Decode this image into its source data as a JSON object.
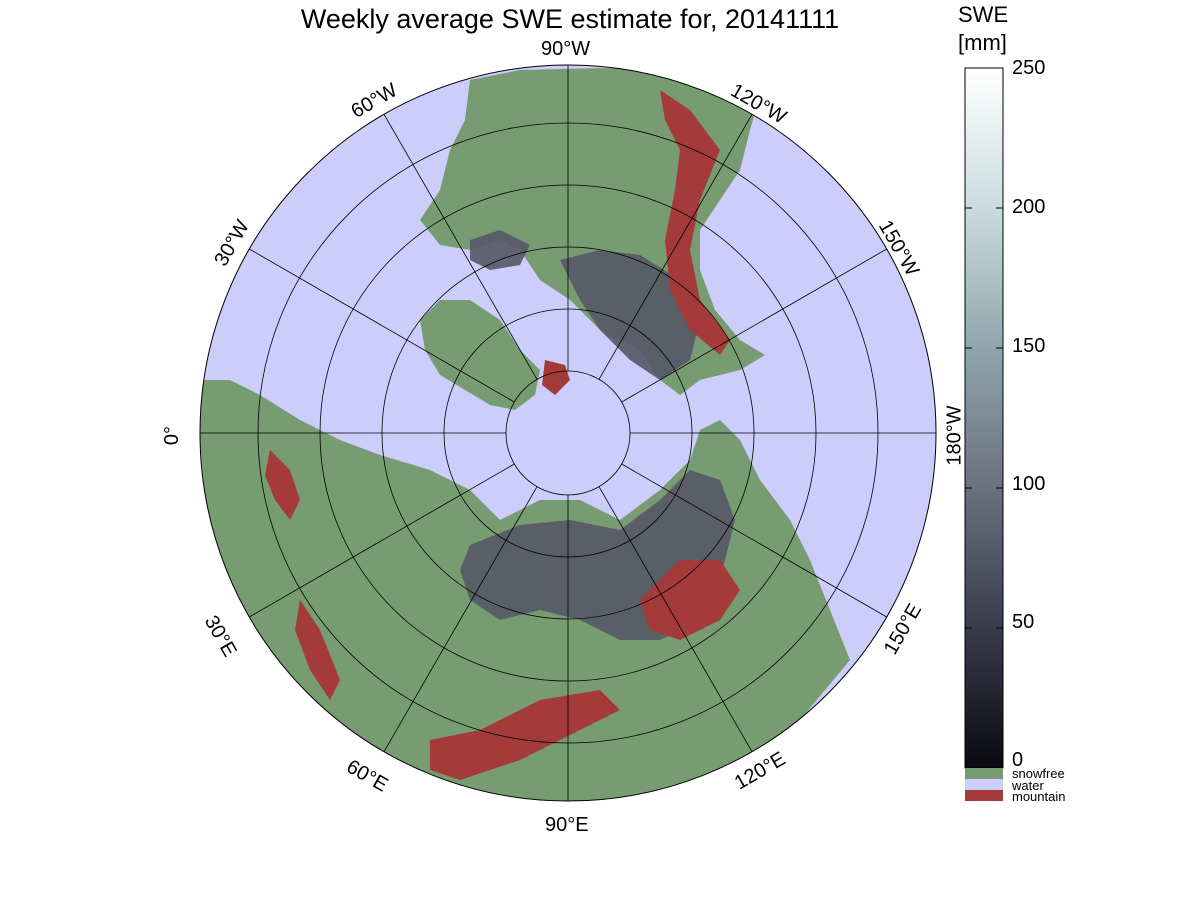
{
  "title": "Weekly average SWE estimate for, 20141111",
  "colorbar": {
    "label_line1": "SWE",
    "label_line2": "[mm]",
    "ticks": [
      "250",
      "200",
      "150",
      "100",
      "50",
      "0"
    ],
    "gradient_colors": [
      "#0a0a10",
      "#3a3a4e",
      "#6a7080",
      "#8fa6ad",
      "#c9dcdc",
      "#ffffff"
    ],
    "categories": [
      {
        "label": "snowfree",
        "color": "#779c72"
      },
      {
        "label": "water",
        "color": "#cccdfb"
      },
      {
        "label": "mountain",
        "color": "#a43a3a"
      }
    ]
  },
  "map": {
    "projection": "north polar stereographic",
    "ocean_color": "#cccdfb",
    "land_color": "#779c72",
    "mountain_color": "#a43a3a",
    "snow_color": "#555866",
    "longitude_labels": [
      "90°W",
      "120°W",
      "150°W",
      "180°W",
      "150°E",
      "120°E",
      "90°E",
      "60°E",
      "30°E",
      "0°",
      "30°W",
      "60°W"
    ]
  }
}
